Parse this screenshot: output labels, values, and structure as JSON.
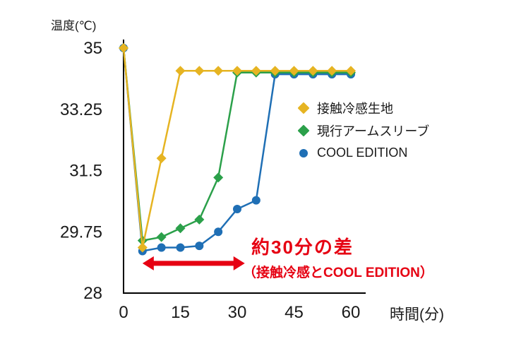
{
  "chart_data": {
    "type": "line",
    "title": "",
    "ylabel": "温度(℃)",
    "xlabel": "時間(分)",
    "xlim": [
      0,
      60
    ],
    "ylim": [
      28,
      35
    ],
    "x_ticks": [
      0,
      15,
      30,
      45,
      60
    ],
    "y_ticks": [
      35,
      33.25,
      31.5,
      29.75,
      28
    ],
    "grid": false,
    "legend_position": "upper-right-inside",
    "x": [
      0,
      5,
      10,
      15,
      20,
      25,
      30,
      35,
      40,
      45,
      50,
      55,
      60
    ],
    "series": [
      {
        "name": "接触冷感生地",
        "color": "#E6B422",
        "marker": "diamond",
        "values": [
          35,
          29.3,
          31.85,
          34.35,
          34.35,
          34.35,
          34.35,
          34.35,
          34.35,
          34.35,
          34.35,
          34.35,
          34.35
        ]
      },
      {
        "name": "現行アームスリーブ",
        "color": "#2BA04A",
        "marker": "diamond",
        "values": [
          35,
          29.5,
          29.6,
          29.85,
          30.1,
          31.3,
          34.3,
          34.3,
          34.3,
          34.3,
          34.3,
          34.3,
          34.3
        ]
      },
      {
        "name": "COOL EDITION",
        "color": "#1F6FB5",
        "marker": "circle",
        "values": [
          35,
          29.2,
          29.3,
          29.3,
          29.35,
          29.75,
          30.4,
          30.65,
          34.25,
          34.25,
          34.25,
          34.25,
          34.25
        ]
      }
    ],
    "annotation": {
      "line1": "約30分の差",
      "line2": "（接触冷感とCOOL EDITION）",
      "color": "#E60012",
      "arrow": {
        "x_start": 5,
        "x_end": 32,
        "y": 28.85
      }
    }
  }
}
